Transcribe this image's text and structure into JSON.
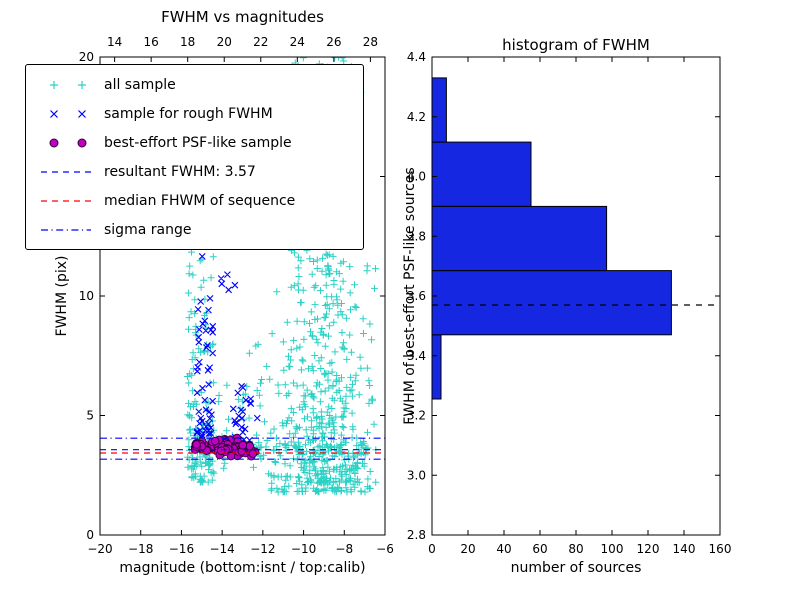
{
  "colors": {
    "background": "#ffffff",
    "axis": "#000000",
    "all_sample": "#2bd1c5",
    "rough_sample": "#0000ff",
    "psf_sample_fill": "#bf00bf",
    "psf_sample_edge": "#30003a",
    "resultant": "#0000ff",
    "median": "#ff0000",
    "sigma": "#0000ff",
    "bar_fill": "#1527e0",
    "marker_line": "#000000"
  },
  "chart_data": [
    {
      "type": "scatter",
      "title": "FWHM vs magnitudes",
      "xlabel": "magnitude (bottom:isnt / top:calib)",
      "ylabel": "FWHM (pix)",
      "xlim": [
        -20,
        -6
      ],
      "ylim": [
        0,
        20
      ],
      "top_xlim": [
        13.2,
        28.8
      ],
      "xticks": [
        -20,
        -18,
        -16,
        -14,
        -12,
        -10,
        -8,
        -6
      ],
      "yticks": [
        0,
        5,
        10,
        15,
        20
      ],
      "top_xticks": [
        14,
        16,
        18,
        20,
        22,
        24,
        26,
        28
      ],
      "series": [
        {
          "name": "all sample",
          "marker": "+",
          "color_key": "all_sample",
          "clusters": [
            {
              "n": 115,
              "x": [
                -15.75,
                -14.35
              ],
              "y": [
                2.2,
                12.8
              ],
              "yp": 1.7
            },
            {
              "n": 45,
              "x": [
                -15.7,
                -14.4
              ],
              "y": [
                2.4,
                5.5
              ]
            },
            {
              "n": 380,
              "x": [
                -11.8,
                -6.2
              ],
              "xtri": true,
              "y": [
                1.8,
                12.5
              ],
              "yp": 2.0
            },
            {
              "n": 150,
              "x": [
                -11.3,
                -6.4
              ],
              "xtri": true,
              "y": [
                2.2,
                19.8
              ],
              "yp": 2.6
            },
            {
              "n": 55,
              "x": [
                -10.9,
                -7.0
              ],
              "xtri": true,
              "y": [
                12.5,
                19.9
              ]
            },
            {
              "n": 12,
              "x": [
                -10.6,
                -7.6
              ],
              "y": [
                19.5,
                20.0
              ]
            },
            {
              "n": 110,
              "x": [
                -15.3,
                -6.8
              ],
              "y": [
                3.25,
                4.15
              ],
              "ytri": true
            },
            {
              "n": 22,
              "x": [
                -12.7,
                -11.3
              ],
              "y": [
                2.4,
                8.5
              ],
              "yp": 1.4
            },
            {
              "n": 28,
              "x": [
                -14.4,
                -11.9
              ],
              "y": [
                2.7,
                6.5
              ],
              "yp": 1.3
            }
          ]
        },
        {
          "name": "sample for rough FWHM",
          "marker": "x",
          "color_key": "rough_sample",
          "clusters": [
            {
              "n": 38,
              "x": [
                -15.25,
                -14.45
              ],
              "y": [
                4.1,
                11.8
              ],
              "yp": 1.7
            },
            {
              "n": 10,
              "x": [
                -15.2,
                -14.5
              ],
              "y": [
                4.0,
                5.2
              ]
            },
            {
              "n": 22,
              "x": [
                -13.45,
                -12.15
              ],
              "y": [
                3.95,
                6.4
              ],
              "yp": 1.2
            },
            {
              "n": 6,
              "x": [
                -14.15,
                -13.05
              ],
              "y": [
                10.2,
                12.3
              ]
            }
          ]
        },
        {
          "name": "best-effort PSF-like sample",
          "marker": "o",
          "color_key": "psf_sample_fill",
          "clusters": [
            {
              "n": 70,
              "x": [
                -15.35,
                -13.1
              ],
              "y": [
                3.45,
                4.08
              ],
              "ytri": true
            },
            {
              "n": 48,
              "x": [
                -14.3,
                -12.3
              ],
              "y": [
                3.28,
                3.92
              ],
              "ytri": true
            }
          ]
        }
      ],
      "lines": [
        {
          "name": "sigma-upper-line",
          "y": 4.05,
          "style": "dashdot",
          "color_key": "sigma",
          "label": "sigma range"
        },
        {
          "name": "sigma-lower-line",
          "y": 3.17,
          "style": "dashdot",
          "color_key": "sigma",
          "label": "sigma range"
        },
        {
          "name": "median-fwhm-line",
          "y": 3.43,
          "style": "dashed",
          "color_key": "median",
          "label": "median FHWM of sequence"
        },
        {
          "name": "resultant-fwhm-line",
          "y": 3.57,
          "style": "dashed",
          "color_key": "resultant",
          "label": "resultant FWHM: 3.57"
        }
      ],
      "legend": [
        {
          "type": "marker",
          "marker": "+",
          "color_key": "all_sample",
          "label": "all sample"
        },
        {
          "type": "marker",
          "marker": "x",
          "color_key": "rough_sample",
          "label": "sample for rough FWHM"
        },
        {
          "type": "marker",
          "marker": "o",
          "color_key": "psf_sample_fill",
          "label": "best-effort PSF-like sample"
        },
        {
          "type": "line",
          "style": "dashed",
          "color_key": "resultant",
          "label": "resultant FWHM: 3.57"
        },
        {
          "type": "line",
          "style": "dashed",
          "color_key": "median",
          "label": "median FHWM of sequence"
        },
        {
          "type": "line",
          "style": "dashdot",
          "color_key": "sigma",
          "label": "sigma range"
        }
      ],
      "stats": {
        "resultant_fwhm": 3.57
      }
    },
    {
      "type": "bar",
      "orientation": "horizontal",
      "title": "histogram of FWHM",
      "xlabel": "number of sources",
      "ylabel": "FWHM of best-effort PSF-like sources",
      "xlim": [
        0,
        160
      ],
      "ylim": [
        2.8,
        4.4
      ],
      "xticks": [
        0,
        20,
        40,
        60,
        80,
        100,
        120,
        140,
        160
      ],
      "yticks": [
        2.8,
        3.0,
        3.2,
        3.4,
        3.6,
        3.8,
        4.0,
        4.2,
        4.4
      ],
      "bins": [
        {
          "from": 3.255,
          "to": 3.47,
          "count": 5
        },
        {
          "from": 3.47,
          "to": 3.685,
          "count": 133
        },
        {
          "from": 3.685,
          "to": 3.9,
          "count": 97
        },
        {
          "from": 3.9,
          "to": 4.115,
          "count": 55
        },
        {
          "from": 4.115,
          "to": 4.33,
          "count": 8
        }
      ],
      "marker_line_y": 3.57
    }
  ]
}
